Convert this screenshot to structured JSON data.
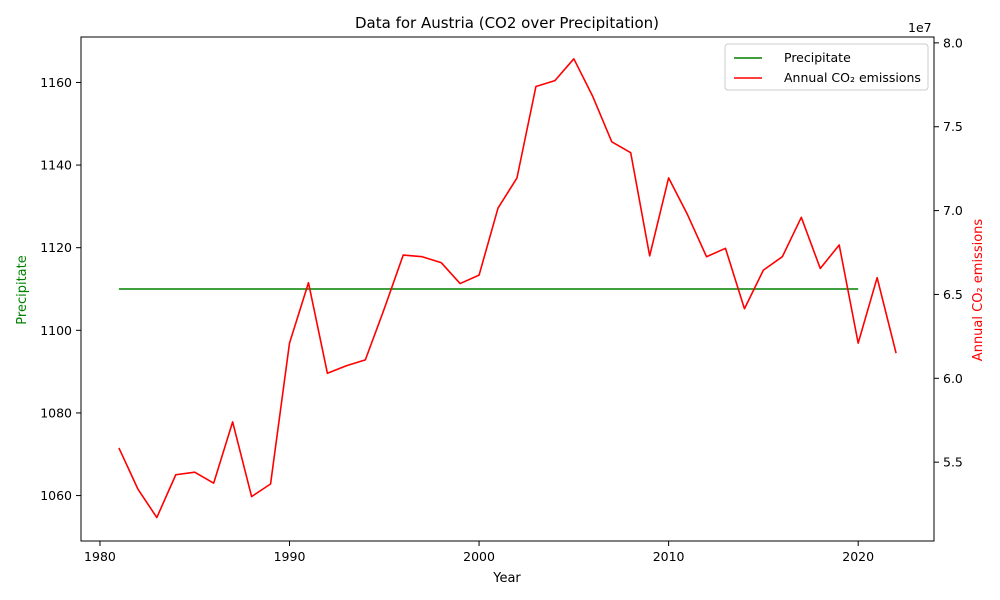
{
  "chart_data": {
    "type": "line",
    "title": "Data for Austria (CO2 over Precipitation)",
    "xlabel": "Year",
    "ylabel_left": "Precipitate",
    "ylabel_right": "Annual CO₂ emissions",
    "right_axis_multiplier": "1e7",
    "xlim": [
      1979,
      2024
    ],
    "ylim_left": [
      1049,
      1171
    ],
    "ylim_right": [
      50300000,
      80350000
    ],
    "x_ticks": [
      1980,
      1990,
      2000,
      2010,
      2020
    ],
    "y_left_ticks": [
      1060,
      1080,
      1100,
      1120,
      1140,
      1160
    ],
    "y_right_ticks": [
      55000000,
      60000000,
      65000000,
      70000000,
      75000000,
      80000000
    ],
    "y_right_tick_labels": [
      "5.5",
      "6.0",
      "6.5",
      "7.0",
      "7.5",
      "8.0"
    ],
    "grid": false,
    "legend_position": "top-right",
    "series": [
      {
        "name": "Precipitate",
        "axis": "left",
        "color": "#008000",
        "x": [
          1981,
          2020
        ],
        "values": [
          1110,
          1110
        ]
      },
      {
        "name": "Annual CO₂ emissions",
        "axis": "right",
        "color": "#ff0000",
        "x": [
          1981,
          1982,
          1983,
          1984,
          1985,
          1986,
          1987,
          1988,
          1989,
          1990,
          1991,
          1992,
          1993,
          1994,
          1995,
          1996,
          1997,
          1998,
          1999,
          2000,
          2001,
          2002,
          2003,
          2004,
          2005,
          2006,
          2007,
          2008,
          2009,
          2010,
          2011,
          2012,
          2013,
          2014,
          2015,
          2016,
          2017,
          2018,
          2019,
          2020,
          2021,
          2022
        ],
        "values": [
          55850000,
          53400000,
          51700000,
          54250000,
          54400000,
          53750000,
          57400000,
          52950000,
          53700000,
          62100000,
          65700000,
          60300000,
          60750000,
          61100000,
          64150000,
          67350000,
          67250000,
          66900000,
          65650000,
          66150000,
          70150000,
          71950000,
          77400000,
          77750000,
          79050000,
          76800000,
          74100000,
          73450000,
          67300000,
          71950000,
          69750000,
          67250000,
          67750000,
          64150000,
          66450000,
          67250000,
          69600000,
          66550000,
          67950000,
          62100000,
          66000000,
          61500000
        ]
      }
    ]
  }
}
